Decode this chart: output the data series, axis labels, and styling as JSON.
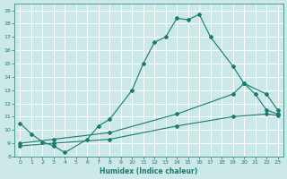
{
  "xlabel": "Humidex (Indice chaleur)",
  "bg_color": "#cce8e8",
  "grid_color": "#ffffff",
  "line_color": "#1a7a6e",
  "xlim": [
    -0.5,
    23.5
  ],
  "ylim": [
    8,
    19.5
  ],
  "xticks": [
    0,
    1,
    2,
    3,
    4,
    5,
    6,
    7,
    8,
    9,
    10,
    11,
    12,
    13,
    14,
    15,
    16,
    17,
    18,
    19,
    20,
    21,
    22,
    23
  ],
  "yticks": [
    8,
    9,
    10,
    11,
    12,
    13,
    14,
    15,
    16,
    17,
    18,
    19
  ],
  "line1_x": [
    0,
    1,
    2,
    3,
    4,
    6,
    7,
    8,
    10,
    11,
    12,
    13,
    14,
    15,
    16,
    17,
    19,
    20,
    21,
    22,
    23
  ],
  "line1_y": [
    10.5,
    9.7,
    9.1,
    8.8,
    8.3,
    9.3,
    10.3,
    10.8,
    13.0,
    15.0,
    16.6,
    17.0,
    18.4,
    18.3,
    18.7,
    17.0,
    14.8,
    13.5,
    12.7,
    11.5,
    11.2
  ],
  "line2_x": [
    0,
    3,
    8,
    14,
    19,
    20,
    22,
    23
  ],
  "line2_y": [
    9.0,
    9.3,
    9.8,
    11.2,
    12.7,
    13.5,
    12.7,
    11.5
  ],
  "line3_x": [
    0,
    3,
    8,
    14,
    19,
    22,
    23
  ],
  "line3_y": [
    8.8,
    9.0,
    9.3,
    10.3,
    11.0,
    11.2,
    11.1
  ]
}
